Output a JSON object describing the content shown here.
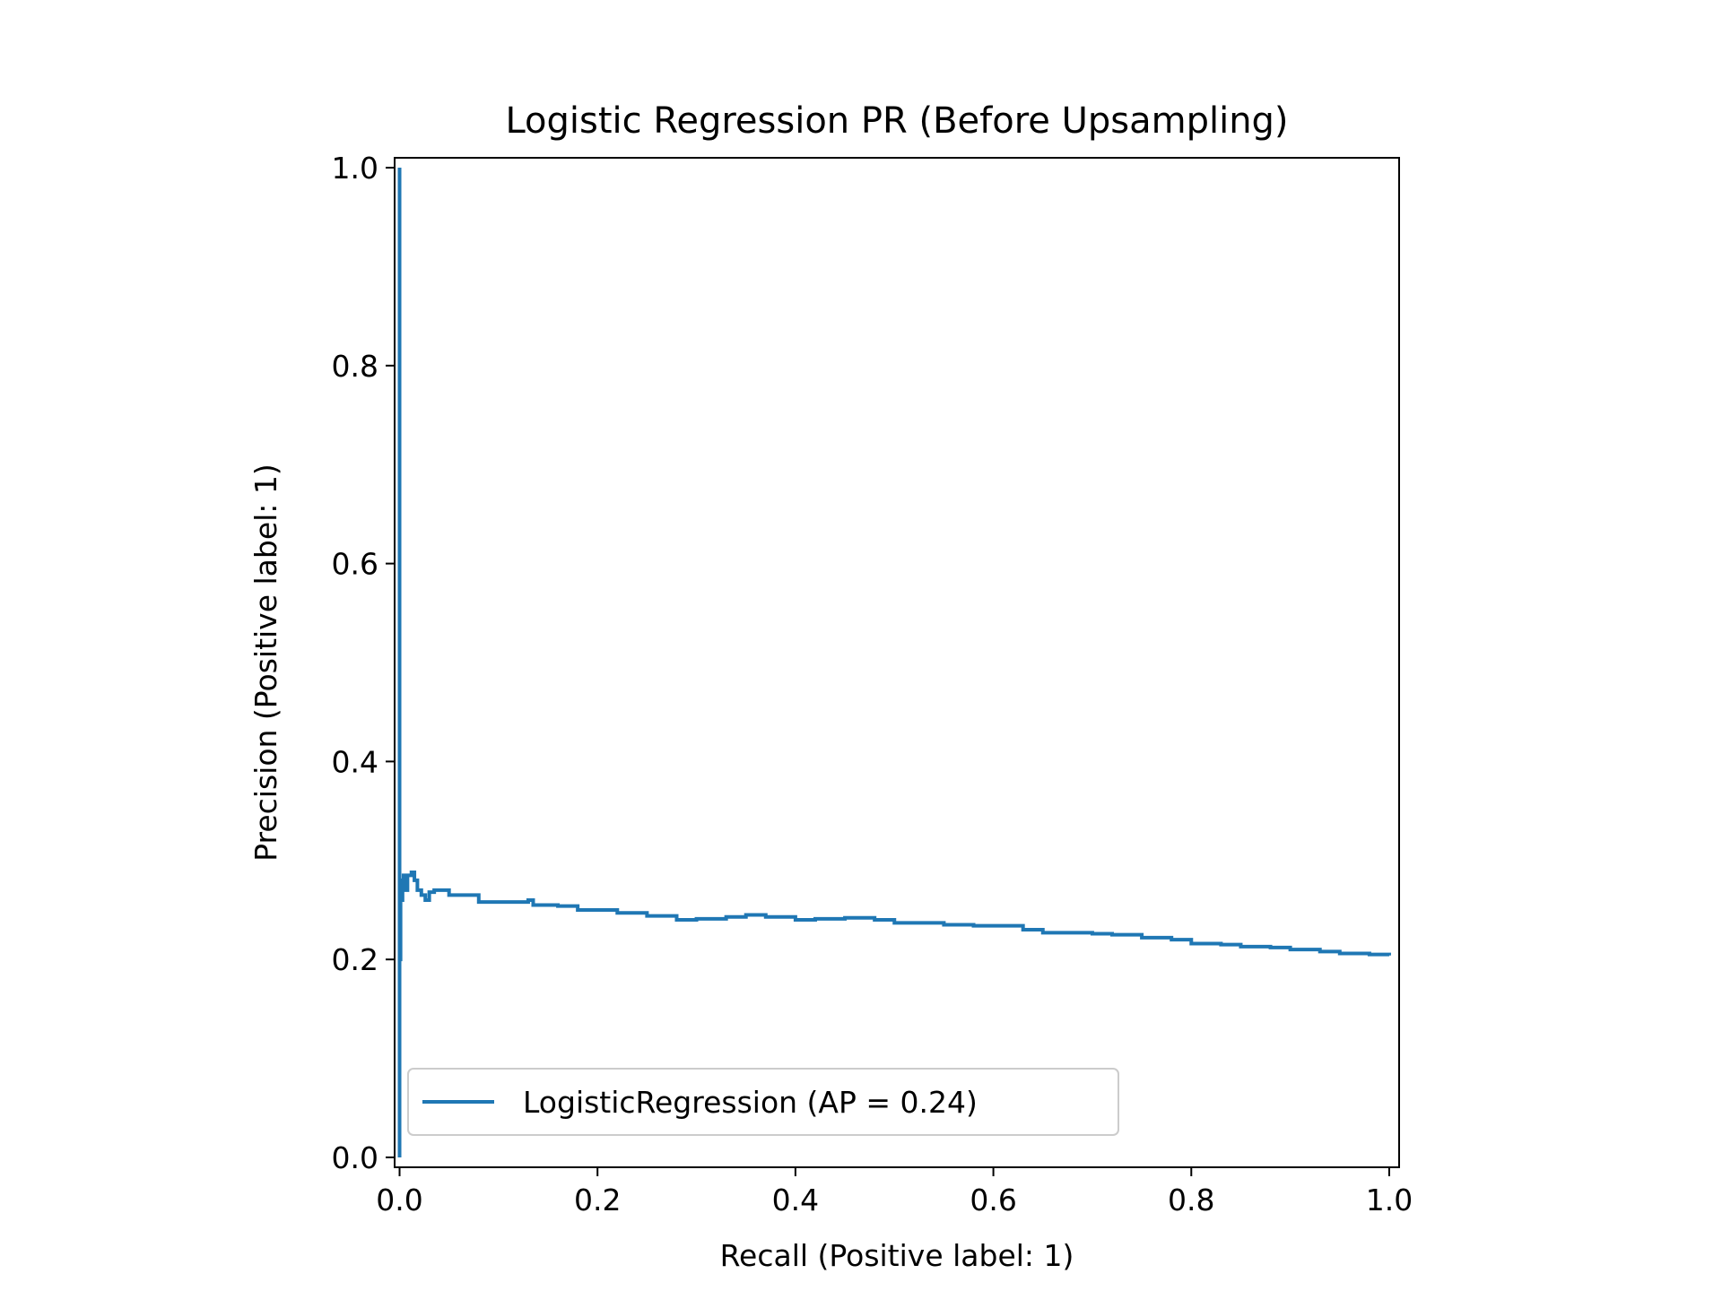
{
  "chart_data": {
    "type": "line",
    "title": "Logistic Regression PR (Before Upsampling)",
    "xlabel": "Recall (Positive label: 1)",
    "ylabel": "Precision (Positive label: 1)",
    "xlim": [
      -0.005,
      1.01
    ],
    "ylim": [
      -0.01,
      1.01
    ],
    "xticks": [
      "0.0",
      "0.2",
      "0.4",
      "0.6",
      "0.8",
      "1.0"
    ],
    "yticks": [
      "0.0",
      "0.2",
      "0.4",
      "0.6",
      "0.8",
      "1.0"
    ],
    "grid": false,
    "legend_position": "lower-left",
    "series": [
      {
        "name": "LogisticRegression (AP = 0.24)",
        "color": "#1f77b4",
        "step": "post",
        "x": [
          0.0,
          0.0,
          0.0,
          0.001,
          0.002,
          0.003,
          0.004,
          0.006,
          0.008,
          0.01,
          0.012,
          0.015,
          0.018,
          0.022,
          0.026,
          0.03,
          0.035,
          0.04,
          0.05,
          0.06,
          0.08,
          0.1,
          0.13,
          0.135,
          0.16,
          0.18,
          0.2,
          0.22,
          0.25,
          0.28,
          0.3,
          0.33,
          0.35,
          0.37,
          0.4,
          0.42,
          0.45,
          0.48,
          0.5,
          0.52,
          0.55,
          0.58,
          0.6,
          0.63,
          0.65,
          0.68,
          0.7,
          0.72,
          0.75,
          0.78,
          0.8,
          0.83,
          0.85,
          0.88,
          0.9,
          0.93,
          0.95,
          0.98,
          1.0
        ],
        "y": [
          1.0,
          0.0,
          0.2,
          0.28,
          0.26,
          0.27,
          0.285,
          0.27,
          0.285,
          0.285,
          0.288,
          0.28,
          0.27,
          0.265,
          0.26,
          0.268,
          0.27,
          0.27,
          0.265,
          0.265,
          0.258,
          0.258,
          0.26,
          0.255,
          0.254,
          0.25,
          0.25,
          0.247,
          0.244,
          0.24,
          0.241,
          0.243,
          0.245,
          0.243,
          0.24,
          0.241,
          0.242,
          0.24,
          0.237,
          0.237,
          0.235,
          0.234,
          0.234,
          0.23,
          0.227,
          0.227,
          0.226,
          0.225,
          0.222,
          0.22,
          0.216,
          0.215,
          0.213,
          0.212,
          0.21,
          0.208,
          0.206,
          0.205,
          0.204
        ]
      }
    ]
  }
}
